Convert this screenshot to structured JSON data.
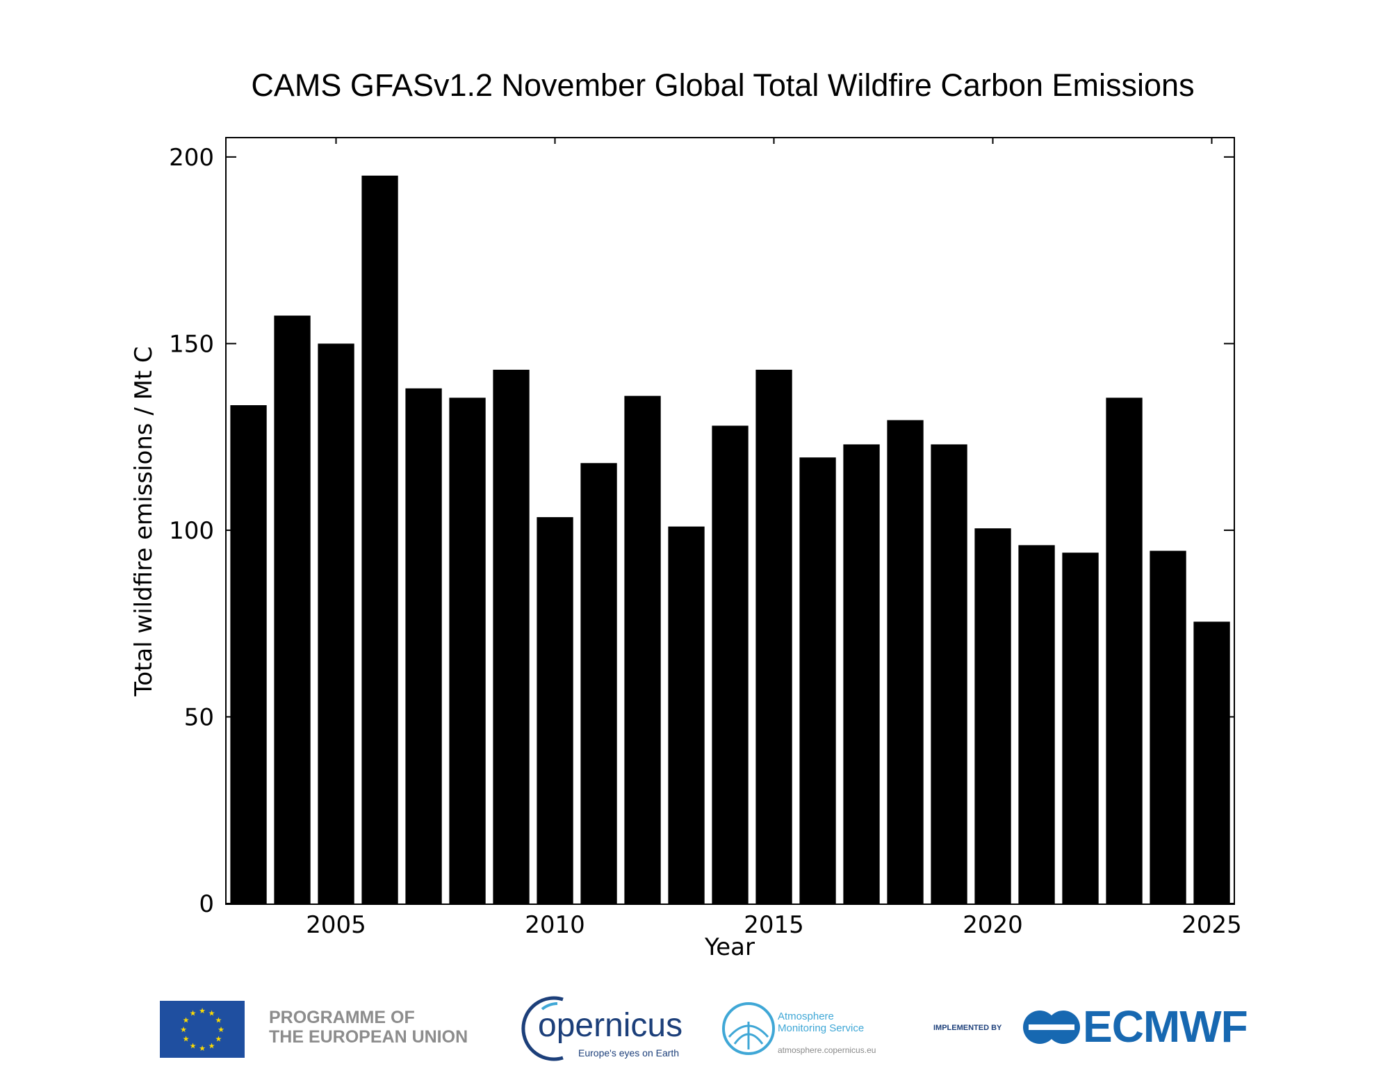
{
  "chart_data": {
    "type": "bar",
    "title": "CAMS GFASv1.2 November Global Total Wildfire Carbon Emissions",
    "xlabel": "Year",
    "ylabel": "Total wildfire emissions / Mt C",
    "ylim": [
      0,
      205
    ],
    "xlim": [
      2002.5,
      2025.5
    ],
    "xticks": [
      2005,
      2010,
      2015,
      2020,
      2025
    ],
    "yticks": [
      0,
      50,
      100,
      150,
      200
    ],
    "grid": false,
    "legend": "none",
    "categories": [
      2003,
      2004,
      2005,
      2006,
      2007,
      2008,
      2009,
      2010,
      2011,
      2012,
      2013,
      2014,
      2015,
      2016,
      2017,
      2018,
      2019,
      2020,
      2021,
      2022,
      2023,
      2024,
      2025
    ],
    "values": [
      133.5,
      157.5,
      150,
      195,
      138,
      135.5,
      143,
      103.5,
      118,
      136,
      101,
      128,
      143,
      119.5,
      123,
      129.5,
      123,
      100.5,
      96,
      94,
      135.5,
      94.5,
      75.5
    ],
    "bar_color": "#000000"
  },
  "footer": {
    "eu_line1": "PROGRAMME OF",
    "eu_line2": "THE EUROPEAN UNION",
    "copernicus_word": "opernicus",
    "copernicus_tagline": "Europe's eyes on Earth",
    "cams_line1": "Atmosphere",
    "cams_line2": "Monitoring Service",
    "cams_url": "atmosphere.copernicus.eu",
    "implemented_by": "IMPLEMENTED BY",
    "ecmwf": "ECMWF",
    "colors": {
      "eu_blue": "#1f4fa0",
      "eu_star": "#ffdd00",
      "copernicus_navy": "#1c3f7a",
      "cams_cyan": "#3fa7d6",
      "ecmwf_blue": "#1768b1"
    }
  }
}
